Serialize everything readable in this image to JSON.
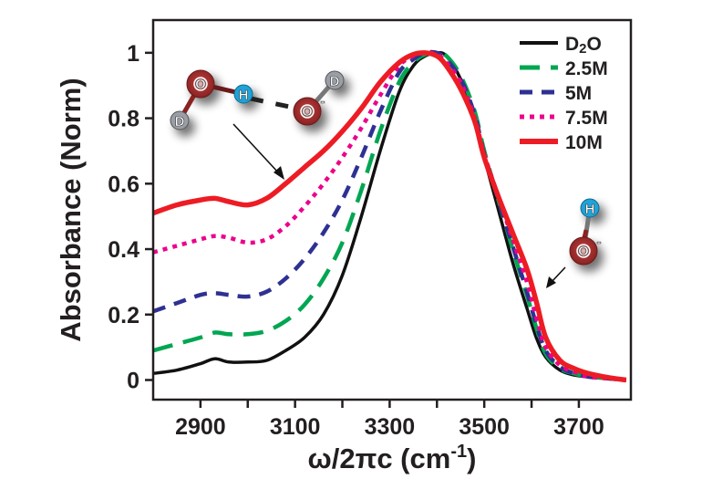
{
  "chart_data": {
    "type": "line",
    "title": "",
    "xlabel": "ω/2πc (cm-1)",
    "xlabel_parts": {
      "main": "ω/2πc (cm",
      "sup": "-1",
      "end": ")"
    },
    "ylabel": "Absorbance (Norm)",
    "xlim": [
      2800,
      3810
    ],
    "ylim": [
      -0.06,
      1.1
    ],
    "x_ticks": [
      2900,
      3100,
      3300,
      3500,
      3700
    ],
    "x_minor_ticks": [
      3000,
      3200,
      3400,
      3600
    ],
    "x_tick_labels": [
      "2900",
      "3100",
      "3300",
      "3500",
      "3700"
    ],
    "y_ticks": [
      0,
      0.2,
      0.4,
      0.6,
      0.8,
      1
    ],
    "y_tick_labels": [
      "0",
      "0.2",
      "0.4",
      "0.6",
      "0.8",
      "1"
    ],
    "grid": false,
    "legend_position": "top-right",
    "x": [
      2800,
      2850,
      2900,
      2930,
      2960,
      3000,
      3040,
      3080,
      3120,
      3160,
      3200,
      3240,
      3280,
      3320,
      3350,
      3375,
      3400,
      3420,
      3450,
      3480,
      3500,
      3530,
      3560,
      3590,
      3610,
      3630,
      3660,
      3690,
      3720,
      3760,
      3800
    ],
    "series": [
      {
        "name": "D2O",
        "legend_main": "D",
        "legend_sub": "2",
        "legend_end": "O",
        "color": "#111111",
        "dash": "solid",
        "values": [
          0.02,
          0.03,
          0.05,
          0.065,
          0.055,
          0.055,
          0.06,
          0.09,
          0.13,
          0.2,
          0.32,
          0.5,
          0.7,
          0.88,
          0.96,
          0.99,
          1.0,
          0.99,
          0.92,
          0.8,
          0.68,
          0.52,
          0.36,
          0.22,
          0.13,
          0.07,
          0.03,
          0.015,
          0.01,
          0.005,
          0.0
        ]
      },
      {
        "name": "2.5M",
        "legend_main": "2.5M",
        "color": "#00a651",
        "dash": "long",
        "values": [
          0.09,
          0.11,
          0.13,
          0.145,
          0.14,
          0.14,
          0.15,
          0.18,
          0.23,
          0.31,
          0.42,
          0.58,
          0.76,
          0.91,
          0.97,
          0.995,
          1.0,
          0.99,
          0.93,
          0.82,
          0.7,
          0.55,
          0.4,
          0.26,
          0.16,
          0.08,
          0.035,
          0.02,
          0.01,
          0.005,
          0.0
        ]
      },
      {
        "name": "5M",
        "legend_main": "5M",
        "color": "#2e3192",
        "dash": "medium",
        "values": [
          0.21,
          0.235,
          0.26,
          0.265,
          0.26,
          0.255,
          0.27,
          0.31,
          0.37,
          0.45,
          0.55,
          0.68,
          0.82,
          0.94,
          0.98,
          1.0,
          1.0,
          0.98,
          0.92,
          0.81,
          0.69,
          0.55,
          0.41,
          0.27,
          0.17,
          0.09,
          0.04,
          0.02,
          0.01,
          0.005,
          0.0
        ]
      },
      {
        "name": "7.5M",
        "legend_main": "7.5M",
        "color": "#ec008c",
        "dash": "dot",
        "values": [
          0.39,
          0.41,
          0.43,
          0.44,
          0.435,
          0.42,
          0.43,
          0.47,
          0.53,
          0.6,
          0.68,
          0.77,
          0.87,
          0.96,
          0.99,
          1.0,
          0.995,
          0.97,
          0.91,
          0.8,
          0.69,
          0.56,
          0.43,
          0.3,
          0.19,
          0.1,
          0.045,
          0.025,
          0.01,
          0.005,
          0.0
        ]
      },
      {
        "name": "10M",
        "legend_main": "10M",
        "color": "#ed1c24",
        "dash": "solid-thick",
        "values": [
          0.51,
          0.535,
          0.55,
          0.555,
          0.545,
          0.535,
          0.555,
          0.6,
          0.65,
          0.7,
          0.76,
          0.83,
          0.91,
          0.97,
          0.995,
          1.0,
          0.99,
          0.96,
          0.89,
          0.79,
          0.68,
          0.56,
          0.45,
          0.34,
          0.24,
          0.13,
          0.06,
          0.035,
          0.02,
          0.008,
          0.0
        ]
      }
    ],
    "annotations": [
      {
        "type": "molecule",
        "label": "D2O...OD- hydrogen-bond complex",
        "atoms": [
          "O",
          "H",
          "O",
          "D",
          "D"
        ],
        "charge": "-"
      },
      {
        "type": "molecule",
        "label": "OH-",
        "atoms": [
          "H",
          "O"
        ],
        "charge": "-"
      }
    ]
  },
  "colors": {
    "axis": "#231f20",
    "oxygen": "#a32a2a",
    "hydrogen": "#1fa3d8",
    "deuterium": "#9a9ea6"
  }
}
